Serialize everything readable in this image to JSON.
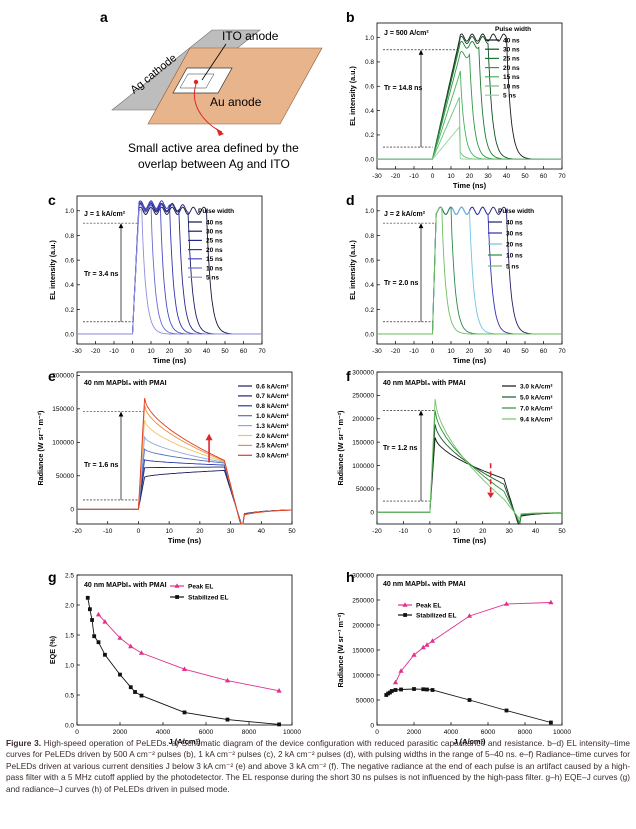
{
  "figure": {
    "caption_label": "Figure 3.",
    "caption_text": "High-speed operation of PeLEDs. a) Schematic diagram of the device configuration with reduced parasitic capacitance and resistance. b–d) EL intensity–time curves for PeLEDs driven by 500 A cm⁻² pulses (b), 1 kA cm⁻² pulses (c), 2 kA cm⁻² pulses (d), with pulsing widths in the range of 5–40 ns. e–f) Radiance–time curves for PeLEDs driven at various current densities J below 3 kA cm⁻² (e) and above 3 kA cm⁻² (f). The negative radiance at the end of each pulse is an artifact caused by a high-pass filter with a 5 MHz cutoff applied by the photodetector. The EL response during the short 30 ns pulses is not influenced by the high-pass filter. g–h) EQE–J curves (g) and radiance–J curves (h) of PeLEDs driven in pulsed mode."
  },
  "schematic": {
    "panel_label": "a",
    "ito_label": "ITO anode",
    "ag_label": "Ag cathode",
    "au_label": "Au anode",
    "note_line1": "Small active area defined by the",
    "note_line2": "overlap between Ag and ITO",
    "colors": {
      "ag": "#bdbdbd",
      "au": "#e8b48c",
      "arrow": "#e0262b"
    }
  },
  "chart_data": [
    {
      "id": "b",
      "type": "line",
      "panel_label": "b",
      "annotation": "J = 500 A/cm²",
      "tr_label": "Tr = 14.8 ns",
      "legend_title": "Pulse width",
      "xlabel": "Time (ns)",
      "ylabel": "EL intensity (a.u.)",
      "xlim": [
        -30,
        70
      ],
      "ylim": [
        -0.08,
        1.12
      ],
      "xticks": [
        -30,
        -20,
        -10,
        0,
        10,
        20,
        30,
        40,
        50,
        60,
        70
      ],
      "yticks": [
        0.0,
        0.2,
        0.4,
        0.6,
        0.8,
        1.0
      ],
      "ytick_labels": [
        "0.0",
        "0.2",
        "0.4",
        "0.6",
        "0.8",
        "1.0"
      ],
      "rise_start": 0,
      "rise_time": 14.8,
      "levels": [
        0.1,
        0.9
      ],
      "series": [
        {
          "name": "40 ns",
          "width": 40,
          "color": "#1b1b1b",
          "peak": 1.0
        },
        {
          "name": "30 ns",
          "width": 30,
          "color": "#0e4f20",
          "peak": 0.98
        },
        {
          "name": "25 ns",
          "width": 25,
          "color": "#1d7a33",
          "peak": 0.94
        },
        {
          "name": "20 ns",
          "width": 20,
          "color": "#2e9a43",
          "peak": 0.86
        },
        {
          "name": "15 ns",
          "width": 15,
          "color": "#44b257",
          "peak": 0.71
        },
        {
          "name": "10 ns",
          "width": 10,
          "color": "#66c47a",
          "peak": 0.52
        },
        {
          "name": "5 ns",
          "width": 5,
          "color": "#92d49d",
          "peak": 0.27
        }
      ]
    },
    {
      "id": "c",
      "type": "line",
      "panel_label": "c",
      "annotation": "J = 1 kA/cm²",
      "tr_label": "Tr = 3.4 ns",
      "legend_title": "Pulse width",
      "xlabel": "Time (ns)",
      "ylabel": "EL intensity (a.u.)",
      "xlim": [
        -30,
        70
      ],
      "ylim": [
        -0.08,
        1.12
      ],
      "xticks": [
        -30,
        -20,
        -10,
        0,
        10,
        20,
        30,
        40,
        50,
        60,
        70
      ],
      "yticks": [
        0.0,
        0.2,
        0.4,
        0.6,
        0.8,
        1.0
      ],
      "ytick_labels": [
        "0.0",
        "0.2",
        "0.4",
        "0.6",
        "0.8",
        "1.0"
      ],
      "rise_start": 0,
      "rise_time": 3.4,
      "levels": [
        0.1,
        0.9
      ],
      "series": [
        {
          "name": "40 ns",
          "width": 40,
          "color": "#151540",
          "peak": 1.0
        },
        {
          "name": "30 ns",
          "width": 30,
          "color": "#1c1c6b",
          "peak": 1.02
        },
        {
          "name": "25 ns",
          "width": 25,
          "color": "#27278f",
          "peak": 1.03
        },
        {
          "name": "20 ns",
          "width": 20,
          "color": "#3434ad",
          "peak": 1.05
        },
        {
          "name": "15 ns",
          "width": 15,
          "color": "#4a4ac4",
          "peak": 1.04
        },
        {
          "name": "10 ns",
          "width": 10,
          "color": "#6a6ad4",
          "peak": 1.02
        },
        {
          "name": "5 ns",
          "width": 5,
          "color": "#8e8ee0",
          "peak": 0.98
        }
      ]
    },
    {
      "id": "d",
      "type": "line",
      "panel_label": "d",
      "annotation": "J = 2 kA/cm²",
      "tr_label": "Tr = 2.0 ns",
      "legend_title": "Pulse width",
      "xlabel": "Time (ns)",
      "ylabel": "EL intensity (a.u.)",
      "xlim": [
        -30,
        70
      ],
      "ylim": [
        -0.08,
        1.12
      ],
      "xticks": [
        -30,
        -20,
        -10,
        0,
        10,
        20,
        30,
        40,
        50,
        60,
        70
      ],
      "yticks": [
        0.0,
        0.2,
        0.4,
        0.6,
        0.8,
        1.0
      ],
      "ytick_labels": [
        "0.0",
        "0.2",
        "0.4",
        "0.6",
        "0.8",
        "1.0"
      ],
      "rise_start": 0,
      "rise_time": 2.0,
      "levels": [
        0.1,
        0.9
      ],
      "series": [
        {
          "name": "40 ns",
          "width": 40,
          "color": "#1f1f6e",
          "peak": 1.0
        },
        {
          "name": "30 ns",
          "width": 30,
          "color": "#2f2fb4",
          "peak": 1.0
        },
        {
          "name": "20 ns",
          "width": 20,
          "color": "#6fc3e6",
          "peak": 1.0
        },
        {
          "name": "10 ns",
          "width": 10,
          "color": "#2a8a4a",
          "peak": 1.0
        },
        {
          "name": "5 ns",
          "width": 5,
          "color": "#6fbf5e",
          "peak": 1.0
        }
      ]
    },
    {
      "id": "e",
      "type": "line",
      "panel_label": "e",
      "annotation": "40 nm MAPbI₃ with PMAI",
      "tr_label": "Tr = 1.6 ns",
      "xlabel": "Time (ns)",
      "ylabel": "Radiance (W sr⁻¹ m⁻²)",
      "xlim": [
        -20,
        50
      ],
      "ylim": [
        -22000,
        205000
      ],
      "xticks": [
        -20,
        -10,
        0,
        10,
        20,
        30,
        40,
        50
      ],
      "yticks": [
        0,
        50000,
        100000,
        150000,
        200000
      ],
      "ytick_labels": [
        "0",
        "50000",
        "100000",
        "150000",
        "200000"
      ],
      "rise_start": 0,
      "pulse_end": 28,
      "tr_levels": [
        14000,
        146000
      ],
      "series": [
        {
          "name": "0.6 kA/cm²",
          "color": "#1e1e5a",
          "peak": 48000,
          "plateau": 58000
        },
        {
          "name": "0.7 kA/cm²",
          "color": "#23237e",
          "peak": 62000,
          "plateau": 63000
        },
        {
          "name": "0.8 kA/cm²",
          "color": "#2a3aa8",
          "peak": 74000,
          "plateau": 66000
        },
        {
          "name": "1.0 kA/cm²",
          "color": "#4d6fc0",
          "peak": 90000,
          "plateau": 69000
        },
        {
          "name": "1.3 kA/cm²",
          "color": "#8ea8d8",
          "peak": 108000,
          "plateau": 70000
        },
        {
          "name": "2.0 kA/cm²",
          "color": "#f0c36a",
          "peak": 133000,
          "plateau": 71000
        },
        {
          "name": "2.5 kA/cm²",
          "color": "#f08a3c",
          "peak": 155000,
          "plateau": 72000
        },
        {
          "name": "3.0 kA/cm²",
          "color": "#e43b1e",
          "peak": 166000,
          "plateau": 73000
        }
      ]
    },
    {
      "id": "f",
      "type": "line",
      "panel_label": "f",
      "annotation": "40 nm MAPbI₃ with PMAI",
      "tr_label": "Tr = 1.2 ns",
      "xlabel": "Time (ns)",
      "ylabel": "Radiance (W sr⁻¹ m⁻²)",
      "xlim": [
        -20,
        50
      ],
      "ylim": [
        -25000,
        300000
      ],
      "xticks": [
        -20,
        -10,
        0,
        10,
        20,
        30,
        40,
        50
      ],
      "yticks": [
        0,
        50000,
        100000,
        150000,
        200000,
        250000,
        300000
      ],
      "ytick_labels": [
        "0",
        "50000",
        "100000",
        "150000",
        "200000",
        "250000",
        "300000"
      ],
      "rise_start": 0,
      "pulse_end": 28,
      "tr_levels": [
        24000,
        218000
      ],
      "series": [
        {
          "name": "3.0 kA/cm²",
          "color": "#151515",
          "peak": 160000,
          "plateau": 72000
        },
        {
          "name": "5.0 kA/cm²",
          "color": "#1a5a2a",
          "peak": 188000,
          "plateau": 60000
        },
        {
          "name": "7.0 kA/cm²",
          "color": "#2f8f3d",
          "peak": 218000,
          "plateau": 45000
        },
        {
          "name": "9.4 kA/cm²",
          "color": "#75c16d",
          "peak": 242000,
          "plateau": 28000
        }
      ]
    },
    {
      "id": "g",
      "type": "line",
      "panel_label": "g",
      "annotation": "40 nm MAPbI₃ with PMAI",
      "xlabel": "J (A/cm²)",
      "ylabel": "EQE (%)",
      "xlim": [
        0,
        10000
      ],
      "ylim": [
        0,
        2.5
      ],
      "xticks": [
        0,
        2000,
        4000,
        6000,
        8000,
        10000
      ],
      "yticks": [
        0.0,
        0.5,
        1.0,
        1.5,
        2.0,
        2.5
      ],
      "ytick_labels": [
        "0.0",
        "0.5",
        "1.0",
        "1.5",
        "2.0",
        "2.5"
      ],
      "series": [
        {
          "name": "Peak EL",
          "color": "#e0308c",
          "marker": "triangle",
          "x": [
            1000,
            1300,
            2000,
            2500,
            3000,
            5000,
            7000,
            9400
          ],
          "y": [
            1.84,
            1.72,
            1.45,
            1.31,
            1.2,
            0.93,
            0.74,
            0.57
          ]
        },
        {
          "name": "Stabilized EL",
          "color": "#111111",
          "marker": "square",
          "x": [
            500,
            600,
            700,
            800,
            1000,
            1300,
            2000,
            2500,
            2700,
            3000,
            5000,
            7000,
            9400
          ],
          "y": [
            2.12,
            1.93,
            1.75,
            1.48,
            1.38,
            1.17,
            0.84,
            0.63,
            0.55,
            0.49,
            0.21,
            0.09,
            0.01
          ]
        }
      ]
    },
    {
      "id": "h",
      "type": "line",
      "panel_label": "h",
      "annotation": "40 nm MAPbI₃ with PMAI",
      "xlabel": "J (A/cm²)",
      "ylabel": "Radiance (W sr⁻¹ m⁻²)",
      "xlim": [
        0,
        10000
      ],
      "ylim": [
        0,
        300000
      ],
      "xticks": [
        0,
        2000,
        4000,
        6000,
        8000,
        10000
      ],
      "yticks": [
        0,
        50000,
        100000,
        150000,
        200000,
        250000,
        300000
      ],
      "ytick_labels": [
        "0",
        "50000",
        "100000",
        "150000",
        "200000",
        "250000",
        "300000"
      ],
      "series": [
        {
          "name": "Peak EL",
          "color": "#e0308c",
          "marker": "triangle",
          "x": [
            1000,
            1300,
            2000,
            2500,
            2700,
            3000,
            5000,
            7000,
            9400
          ],
          "y": [
            85000,
            108000,
            140000,
            155000,
            160000,
            168000,
            218000,
            242000,
            245000
          ]
        },
        {
          "name": "Stabilized EL",
          "color": "#111111",
          "marker": "square",
          "x": [
            500,
            600,
            700,
            800,
            1000,
            1300,
            2000,
            2500,
            2700,
            3000,
            5000,
            7000,
            9400
          ],
          "y": [
            60000,
            63000,
            65000,
            68000,
            70000,
            71000,
            72000,
            71500,
            71000,
            70000,
            50000,
            29000,
            5000
          ]
        }
      ]
    }
  ]
}
